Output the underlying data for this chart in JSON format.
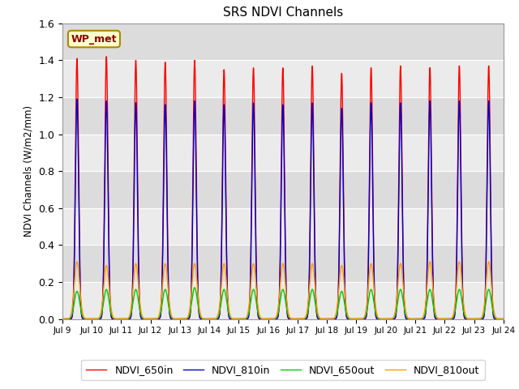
{
  "title": "SRS NDVI Channels",
  "ylabel": "NDVI Channels (W/m2/mm)",
  "xlabel": "",
  "ylim": [
    0.0,
    1.6
  ],
  "yticks": [
    0.0,
    0.2,
    0.4,
    0.6,
    0.8,
    1.0,
    1.2,
    1.4,
    1.6
  ],
  "start_day": 9,
  "end_day": 24,
  "n_days": 15,
  "peak_650in": [
    1.41,
    1.42,
    1.4,
    1.39,
    1.4,
    1.35,
    1.36,
    1.36,
    1.37,
    1.33,
    1.36,
    1.37,
    1.36,
    1.37,
    1.37
  ],
  "peak_810in": [
    1.19,
    1.18,
    1.17,
    1.16,
    1.18,
    1.16,
    1.17,
    1.16,
    1.17,
    1.14,
    1.17,
    1.17,
    1.18,
    1.18,
    1.18
  ],
  "peak_650out": [
    0.15,
    0.16,
    0.16,
    0.16,
    0.17,
    0.16,
    0.16,
    0.16,
    0.16,
    0.15,
    0.16,
    0.16,
    0.16,
    0.16,
    0.16
  ],
  "peak_810out": [
    0.31,
    0.29,
    0.3,
    0.3,
    0.3,
    0.3,
    0.3,
    0.3,
    0.3,
    0.29,
    0.3,
    0.3,
    0.31,
    0.31,
    0.31
  ],
  "color_650in": "#FF0000",
  "color_810in": "#0000CC",
  "color_650out": "#00CC00",
  "color_810out": "#FF9900",
  "legend_label_650in": "NDVI_650in",
  "legend_label_810in": "NDVI_810in",
  "legend_label_650out": "NDVI_650out",
  "legend_label_810out": "NDVI_810out",
  "bg_color_light": "#EBEBEB",
  "bg_color_dark": "#DCDCDC",
  "grid_color": "#FFFFFF",
  "annotation_text": "WP_met",
  "annotation_bg": "#FFFFCC",
  "annotation_edge": "#AA8800",
  "sigma_in": 0.055,
  "sigma_out": 0.09,
  "points_per_day": 200
}
